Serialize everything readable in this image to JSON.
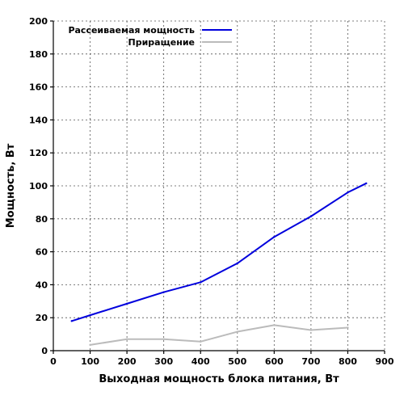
{
  "chart_data": {
    "type": "line",
    "xlabel": "Выходная мощность блока питания, Вт",
    "ylabel": "Мощность, Вт",
    "xlim": [
      0,
      900
    ],
    "ylim": [
      0,
      200
    ],
    "x_ticks": [
      0,
      100,
      200,
      300,
      400,
      500,
      600,
      700,
      800,
      900
    ],
    "y_ticks": [
      0,
      20,
      40,
      60,
      80,
      100,
      120,
      140,
      160,
      180,
      200
    ],
    "grid": true,
    "legend_position": "top-left",
    "series": [
      {
        "name": "Рассеиваемая мощность",
        "color": "#0000dd",
        "x": [
          50,
          100,
          200,
          300,
          400,
          500,
          600,
          700,
          800,
          850
        ],
        "y": [
          18,
          21.5,
          28.5,
          35.5,
          41.5,
          53,
          69,
          81.5,
          96,
          101.5
        ]
      },
      {
        "name": "Приращение",
        "color": "#bbbbbb",
        "x": [
          100,
          200,
          300,
          400,
          500,
          600,
          700,
          800
        ],
        "y": [
          3.5,
          7,
          7,
          5.5,
          11.5,
          15.5,
          12.5,
          14
        ]
      }
    ]
  }
}
